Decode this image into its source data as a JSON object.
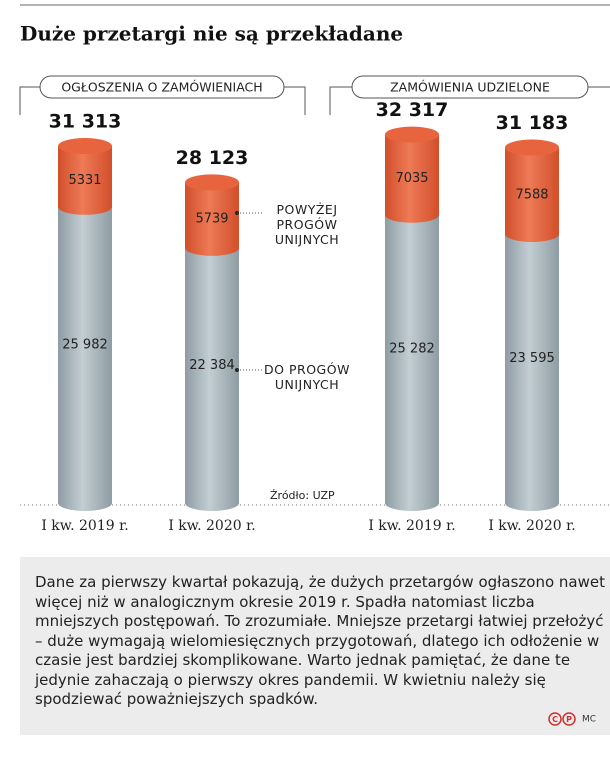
{
  "chart_data": {
    "type": "bar",
    "stacked": true,
    "title": "Duże przetargi nie są przekładane",
    "groups": [
      "OGŁOSZENIA O ZAMÓWIENIACH",
      "ZAMÓWIENIA UDZIELONE"
    ],
    "categories": [
      "I kw. 2019 r.",
      "I kw. 2020 r.",
      "I kw. 2019 r.",
      "I kw. 2020 r."
    ],
    "series": [
      {
        "name": "DO PROGÓW UNIJNYCH",
        "color": "#a9b7be",
        "values": [
          25982,
          22384,
          25282,
          23595
        ],
        "value_labels": [
          "25 982",
          "22 384",
          "25 282",
          "23 595"
        ]
      },
      {
        "name": "POWYŻEJ PROGÓW UNIJNYCH",
        "color": "#e8643f",
        "values": [
          5331,
          5739,
          7035,
          7588
        ],
        "value_labels": [
          "5331",
          "5739",
          "7035",
          "7588"
        ]
      }
    ],
    "total_labels": [
      "31 313",
      "28 123",
      "32 317",
      "31 183"
    ],
    "source": "Źródło: UZP"
  },
  "body": {
    "text": "Dane za pierwszy kwartał pokazują, że dużych przetargów ogłaszono nawet więcej niż w analogicznym okresie 2019 r. Spadła natomiast liczba mniejszych postępowań. To zrozumiałe. Mniejsze przetargi łatwiej przełożyć – duże wymagają wielomiesięcznych przygotowań, dlatego ich odłożenie w czasie jest bardziej skomplikowane. Warto jednak pamiętać, że dane te jedynie zahaczają o pierwszy okres pandemii. W kwietniu należy się spodziewać poważniejszych spadków.",
    "marks": [
      "C",
      "P"
    ],
    "credit": "MC"
  }
}
